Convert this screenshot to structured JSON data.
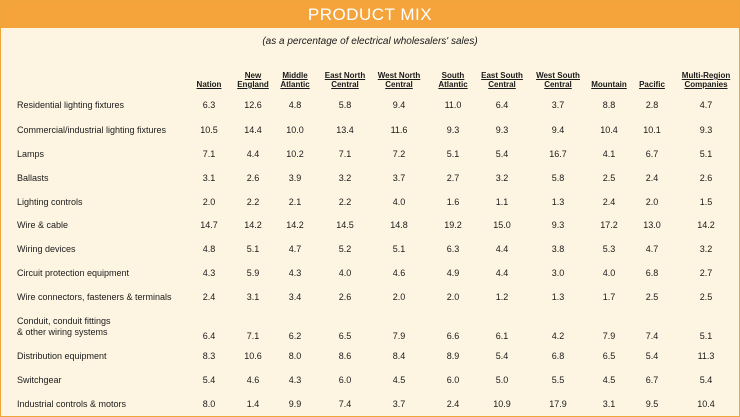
{
  "title": "PRODUCT MIX",
  "subtitle": "(as a percentage of electrical wholesalers' sales)",
  "columns": [
    "Nation",
    "New\nEngland",
    "Middle\nAtlantic",
    "East North\nCentral",
    "West North\nCentral",
    "South\nAtlantic",
    "East South\nCentral",
    "West South\nCentral",
    "Mountain",
    "Pacific",
    "Multi-Region\nCompanies"
  ],
  "rows": [
    {
      "label": "Residential lighting fixtures",
      "values": [
        "6.3",
        "12.6",
        "4.8",
        "5.8",
        "9.4",
        "11.0",
        "6.4",
        "3.7",
        "8.8",
        "2.8",
        "4.7"
      ]
    },
    {
      "label": "Commercial/industrial lighting fixtures",
      "values": [
        "10.5",
        "14.4",
        "10.0",
        "13.4",
        "11.6",
        "9.3",
        "9.3",
        "9.4",
        "10.4",
        "10.1",
        "9.3"
      ]
    },
    {
      "label": "Lamps",
      "values": [
        "7.1",
        "4.4",
        "10.2",
        "7.1",
        "7.2",
        "5.1",
        "5.4",
        "16.7",
        "4.1",
        "6.7",
        "5.1"
      ]
    },
    {
      "label": "Ballasts",
      "values": [
        "3.1",
        "2.6",
        "3.9",
        "3.2",
        "3.7",
        "2.7",
        "3.2",
        "5.8",
        "2.5",
        "2.4",
        "2.6"
      ]
    },
    {
      "label": "Lighting controls",
      "values": [
        "2.0",
        "2.2",
        "2.1",
        "2.2",
        "4.0",
        "1.6",
        "1.1",
        "1.3",
        "2.4",
        "2.0",
        "1.5"
      ]
    },
    {
      "label": "Wire & cable",
      "values": [
        "14.7",
        "14.2",
        "14.2",
        "14.5",
        "14.8",
        "19.2",
        "15.0",
        "9.3",
        "17.2",
        "13.0",
        "14.2"
      ]
    },
    {
      "label": "Wiring devices",
      "values": [
        "4.8",
        "5.1",
        "4.7",
        "5.2",
        "5.1",
        "6.3",
        "4.4",
        "3.8",
        "5.3",
        "4.7",
        "3.2"
      ]
    },
    {
      "label": "Circuit protection equipment",
      "values": [
        "4.3",
        "5.9",
        "4.3",
        "4.0",
        "4.6",
        "4.9",
        "4.4",
        "3.0",
        "4.0",
        "6.8",
        "2.7"
      ]
    },
    {
      "label": "Wire connectors, fasteners & terminals",
      "values": [
        "2.4",
        "3.1",
        "3.4",
        "2.6",
        "2.0",
        "2.0",
        "1.2",
        "1.3",
        "1.7",
        "2.5",
        "2.5"
      ]
    },
    {
      "label": "Conduit, conduit fittings\n& other wiring systems",
      "values": [
        "6.4",
        "7.1",
        "6.2",
        "6.5",
        "7.9",
        "6.6",
        "6.1",
        "4.2",
        "7.9",
        "7.4",
        "5.1"
      ]
    },
    {
      "label": "Distribution equipment",
      "values": [
        "8.3",
        "10.6",
        "8.0",
        "8.6",
        "8.4",
        "8.9",
        "5.4",
        "6.8",
        "6.5",
        "5.4",
        "11.3"
      ]
    },
    {
      "label": "Switchgear",
      "values": [
        "5.4",
        "4.6",
        "4.3",
        "6.0",
        "4.5",
        "6.0",
        "5.0",
        "5.5",
        "4.5",
        "6.7",
        "5.4"
      ]
    },
    {
      "label": "Industrial controls & motors",
      "values": [
        "8.0",
        "1.4",
        "9.9",
        "7.4",
        "3.7",
        "2.4",
        "10.9",
        "17.9",
        "3.1",
        "9.5",
        "10.4"
      ]
    }
  ]
}
